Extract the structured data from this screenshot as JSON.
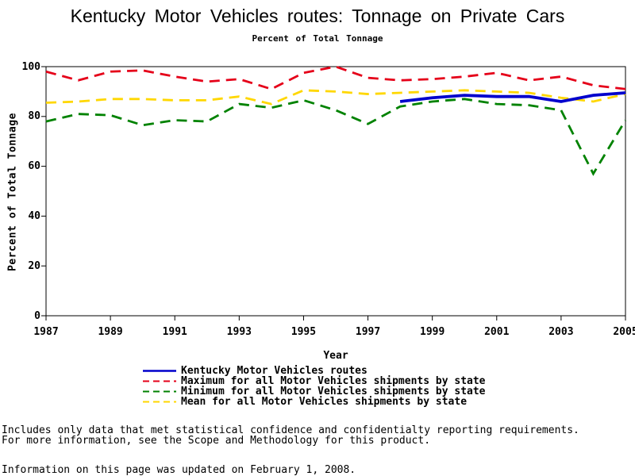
{
  "title": "Kentucky Motor Vehicles routes: Tonnage on Private Cars",
  "subtitle": "Percent of Total Tonnage",
  "chart_data": {
    "type": "line",
    "title": "Kentucky Motor Vehicles routes: Tonnage on Private Cars",
    "subtitle": "Percent of Total Tonnage",
    "xlabel": "Year",
    "ylabel": "Percent of Total Tonnage",
    "xlim": [
      1987,
      2005
    ],
    "ylim": [
      0,
      100
    ],
    "x_ticks": [
      1987,
      1989,
      1991,
      1993,
      1995,
      1997,
      1999,
      2001,
      2003,
      2005
    ],
    "y_ticks": [
      0,
      20,
      40,
      60,
      80,
      100
    ],
    "grid": false,
    "legend_position": "bottom",
    "frame": true,
    "series": [
      {
        "name": "Kentucky Motor Vehicles routes",
        "color": "#0000cc",
        "line_style": "solid",
        "x": [
          1998,
          1999,
          2000,
          2001,
          2002,
          2003,
          2004,
          2005
        ],
        "values": [
          86,
          87.5,
          88.5,
          88,
          88,
          86,
          88.5,
          89.5
        ]
      },
      {
        "name": "Maximum for all Motor Vehicles shipments by state",
        "color": "#e50019",
        "line_style": "dashed",
        "x": [
          1987,
          1988,
          1989,
          1990,
          1991,
          1992,
          1993,
          1994,
          1995,
          1996,
          1997,
          1998,
          1999,
          2000,
          2001,
          2002,
          2003,
          2004,
          2005
        ],
        "values": [
          98,
          94.5,
          98,
          98.5,
          96,
          94,
          95,
          91,
          97.5,
          100,
          95.5,
          94.5,
          95,
          96,
          97.5,
          94.5,
          96,
          92.5,
          91
        ]
      },
      {
        "name": "Minimum for all Motor Vehicles shipments by state",
        "color": "#008200",
        "line_style": "dashed",
        "x": [
          1987,
          1988,
          1989,
          1990,
          1991,
          1992,
          1993,
          1994,
          1995,
          1996,
          1997,
          1998,
          1999,
          2000,
          2001,
          2002,
          2003,
          2004,
          2005
        ],
        "values": [
          78,
          81,
          80.5,
          76.5,
          78.5,
          78,
          85,
          83.5,
          86.5,
          82.5,
          77,
          84,
          86,
          87,
          85,
          84.5,
          82.5,
          57,
          78.5
        ]
      },
      {
        "name": "Mean for all Motor Vehicles shipments by state",
        "color": "#ffd700",
        "line_style": "dashed",
        "x": [
          1987,
          1988,
          1989,
          1990,
          1991,
          1992,
          1993,
          1994,
          1995,
          1996,
          1997,
          1998,
          1999,
          2000,
          2001,
          2002,
          2003,
          2004,
          2005
        ],
        "values": [
          85.5,
          86,
          87,
          87,
          86.5,
          86.5,
          88,
          85,
          90.5,
          90,
          89,
          89.5,
          90,
          90.5,
          90,
          89.5,
          87.5,
          86,
          89
        ]
      }
    ]
  },
  "footer": {
    "line1": "Includes only data that met statistical confidence and confidentialty reporting requirements.",
    "line2": "For more information, see the Scope and Methodology for this product.",
    "line3": "Information on this page was updated on February 1, 2008."
  }
}
